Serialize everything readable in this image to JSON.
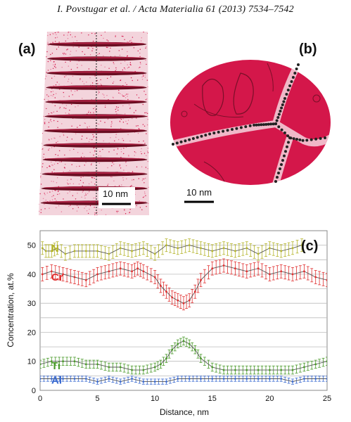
{
  "header": "I. Povstugar et al. / Acta Materialia 61 (2013) 7534–7542",
  "panels": {
    "a": {
      "label": "(a)",
      "scalebar": "10 nm"
    },
    "b": {
      "label": "(b)",
      "scalebar": "10 nm"
    },
    "c": {
      "label": "(c)"
    }
  },
  "colors": {
    "N": "#b4b42a",
    "Cr": "#e03030",
    "Ti": "#4a9a2a",
    "Al": "#3a6ad0",
    "tomo": "#d4174a"
  },
  "chart_data": {
    "type": "line",
    "xlabel": "Distance, nm",
    "ylabel": "Concentration, at.%",
    "xlim": [
      0,
      25
    ],
    "ylim": [
      0,
      55
    ],
    "xticks": [
      "0",
      "5",
      "10",
      "15",
      "20",
      "25"
    ],
    "yticks": [
      "0",
      "10",
      "20",
      "30",
      "40",
      "50"
    ],
    "grid": true,
    "series": [
      {
        "name": "N",
        "x": [
          0.2,
          0.5,
          1,
          1.5,
          2.2,
          3,
          4,
          5,
          6,
          7,
          8,
          9,
          10,
          11,
          12,
          13,
          14,
          15,
          16,
          17,
          18,
          19,
          20,
          21,
          22,
          22.8
        ],
        "values": [
          49,
          48,
          48,
          49,
          47,
          48,
          48,
          48,
          47,
          49,
          48,
          49,
          47,
          50,
          49,
          50,
          49,
          48,
          49,
          48,
          49,
          47,
          49,
          48,
          49,
          50
        ]
      },
      {
        "name": "Cr",
        "x": [
          0.2,
          1,
          2,
          3,
          4,
          5,
          6,
          7,
          8,
          8.5,
          9,
          10,
          10.5,
          11,
          11.5,
          12,
          12.5,
          13,
          13.5,
          14,
          15,
          16,
          17,
          18,
          19,
          20,
          21,
          22,
          23,
          24,
          25
        ],
        "values": [
          40,
          41,
          40,
          39,
          38,
          40,
          41,
          42,
          41,
          42,
          41,
          39,
          36,
          34,
          32,
          31,
          30,
          31,
          34,
          38,
          42,
          43,
          42,
          41,
          42,
          40,
          41,
          40,
          41,
          39,
          38
        ]
      },
      {
        "name": "Ti",
        "x": [
          0,
          1,
          2,
          3,
          4,
          5,
          6,
          7,
          8,
          9,
          10,
          10.5,
          11,
          11.5,
          12,
          12.5,
          13,
          13.5,
          14,
          15,
          16,
          17,
          18,
          19,
          20,
          21,
          22,
          23,
          24,
          25
        ],
        "values": [
          9,
          10,
          10,
          10,
          9,
          9,
          8,
          8,
          7,
          7,
          8,
          9,
          11,
          14,
          16,
          17,
          16,
          14,
          11,
          8,
          7,
          7,
          7,
          7,
          7,
          7,
          7,
          8,
          9,
          10
        ]
      },
      {
        "name": "Al",
        "x": [
          0,
          1,
          2,
          3,
          4,
          5,
          6,
          7,
          8,
          9,
          10,
          11,
          12,
          13,
          14,
          15,
          16,
          17,
          18,
          19,
          20,
          21,
          22,
          23,
          24,
          25
        ],
        "values": [
          4,
          4,
          4,
          4,
          4,
          3,
          4,
          3,
          4,
          3,
          3,
          3,
          4,
          4,
          4,
          4,
          4,
          4,
          4,
          4,
          4,
          4,
          3,
          4,
          4,
          4
        ]
      }
    ]
  }
}
